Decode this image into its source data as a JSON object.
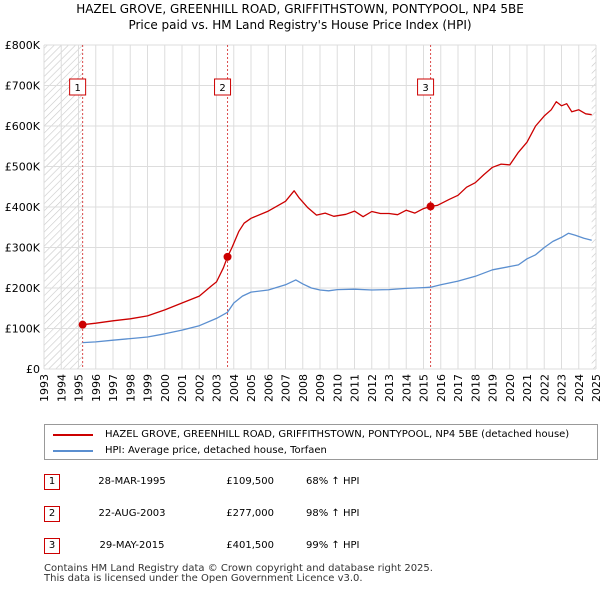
{
  "title_line1": "HAZEL GROVE, GREENHILL ROAD, GRIFFITHSTOWN, PONTYPOOL, NP4 5BE",
  "title_line2": "Price paid vs. HM Land Registry's House Price Index (HPI)",
  "chart_data": {
    "type": "line",
    "title": "Price paid vs. HM Land Registry's House Price Index (HPI)",
    "xlim": [
      1993,
      2025
    ],
    "ylim": [
      0,
      800000
    ],
    "y_ticks": [
      0,
      100000,
      200000,
      300000,
      400000,
      500000,
      600000,
      700000,
      800000
    ],
    "y_tick_labels": [
      "£0",
      "£100K",
      "£200K",
      "£300K",
      "£400K",
      "£500K",
      "£600K",
      "£700K",
      "£800K"
    ],
    "x_ticks": [
      "1993",
      "1994",
      "1995",
      "1996",
      "1997",
      "1998",
      "1999",
      "2000",
      "2001",
      "2002",
      "2003",
      "2004",
      "2005",
      "2006",
      "2007",
      "2008",
      "2009",
      "2010",
      "2011",
      "2012",
      "2013",
      "2014",
      "2015",
      "2016",
      "2017",
      "2018",
      "2019",
      "2020",
      "2021",
      "2022",
      "2023",
      "2024",
      "2025"
    ],
    "hatched_ranges": [
      [
        1993,
        1995.24
      ],
      [
        2024.75,
        2025
      ]
    ],
    "series": [
      {
        "name": "HAZEL GROVE, GREENHILL ROAD, GRIFFITHSTOWN, PONTYPOOL, NP4 5BE (detached house)",
        "color": "#cc0000",
        "x": [
          1995.24,
          1996,
          1997,
          1998,
          1999,
          2000,
          2001,
          2002,
          2002.7,
          2003,
          2003.4,
          2003.64,
          2003.9,
          2004.3,
          2004.6,
          2005,
          2006,
          2007,
          2007.5,
          2007.8,
          2008.3,
          2008.8,
          2009.3,
          2009.8,
          2010.5,
          2011,
          2011.5,
          2012,
          2012.5,
          2013,
          2013.5,
          2014,
          2014.5,
          2015,
          2015.41,
          2015.8,
          2016.5,
          2017,
          2017.5,
          2018,
          2018.5,
          2019,
          2019.5,
          2020,
          2020.5,
          2021,
          2021.5,
          2022,
          2022.4,
          2022.7,
          2023,
          2023.3,
          2023.6,
          2024,
          2024.4,
          2024.75
        ],
        "y": [
          109500,
          113000,
          119000,
          124000,
          131000,
          146000,
          163000,
          180000,
          205000,
          215000,
          250000,
          277000,
          300000,
          340000,
          360000,
          372000,
          390000,
          414000,
          440000,
          422000,
          398000,
          380000,
          385000,
          377000,
          382000,
          390000,
          376000,
          389000,
          384000,
          384000,
          381000,
          392000,
          385000,
          396000,
          401500,
          404000,
          419000,
          429000,
          449000,
          460000,
          480000,
          498000,
          506000,
          504000,
          535000,
          560000,
          600000,
          625000,
          640000,
          660000,
          650000,
          655000,
          635000,
          640000,
          630000,
          628000
        ]
      },
      {
        "name": "HPI: Average price, detached house, Torfaen",
        "color": "#5b8fd0",
        "x": [
          1995.24,
          1996,
          1997,
          1998,
          1999,
          2000,
          2001,
          2002,
          2003,
          2003.64,
          2004,
          2004.5,
          2005,
          2006,
          2007,
          2007.6,
          2008,
          2008.5,
          2009,
          2009.5,
          2010,
          2011,
          2012,
          2013,
          2014,
          2015,
          2015.41,
          2016,
          2017,
          2018,
          2019,
          2020,
          2020.5,
          2021,
          2021.5,
          2022,
          2022.5,
          2023,
          2023.4,
          2023.8,
          2024.3,
          2024.75
        ],
        "y": [
          65200,
          67000,
          71000,
          75000,
          79000,
          87000,
          96000,
          107000,
          125000,
          140000,
          163000,
          180000,
          190000,
          195000,
          208000,
          220000,
          210000,
          200000,
          195000,
          193000,
          196000,
          197000,
          195000,
          196000,
          199000,
          201000,
          202000,
          208000,
          217000,
          229000,
          245000,
          253000,
          257000,
          272000,
          282000,
          300000,
          315000,
          325000,
          335000,
          330000,
          323000,
          318000
        ]
      }
    ],
    "sales": [
      {
        "label": "1",
        "x": 1995.24,
        "y": 109500
      },
      {
        "label": "2",
        "x": 2003.64,
        "y": 277000
      },
      {
        "label": "3",
        "x": 2015.41,
        "y": 401500
      }
    ]
  },
  "legend": {
    "items": [
      {
        "label": "HAZEL GROVE, GREENHILL ROAD, GRIFFITHSTOWN, PONTYPOOL, NP4 5BE (detached house)",
        "color": "#cc0000"
      },
      {
        "label": "HPI: Average price, detached house, Torfaen",
        "color": "#5b8fd0"
      }
    ]
  },
  "sales_table": [
    {
      "num": "1",
      "date": "28-MAR-1995",
      "price": "£109,500",
      "hpi": "68% ↑ HPI"
    },
    {
      "num": "2",
      "date": "22-AUG-2003",
      "price": "£277,000",
      "hpi": "98% ↑ HPI"
    },
    {
      "num": "3",
      "date": "29-MAY-2015",
      "price": "£401,500",
      "hpi": "99% ↑ HPI"
    }
  ],
  "footer": {
    "line1": "Contains HM Land Registry data © Crown copyright and database right 2025.",
    "line2": "This data is licensed under the Open Government Licence v3.0."
  }
}
